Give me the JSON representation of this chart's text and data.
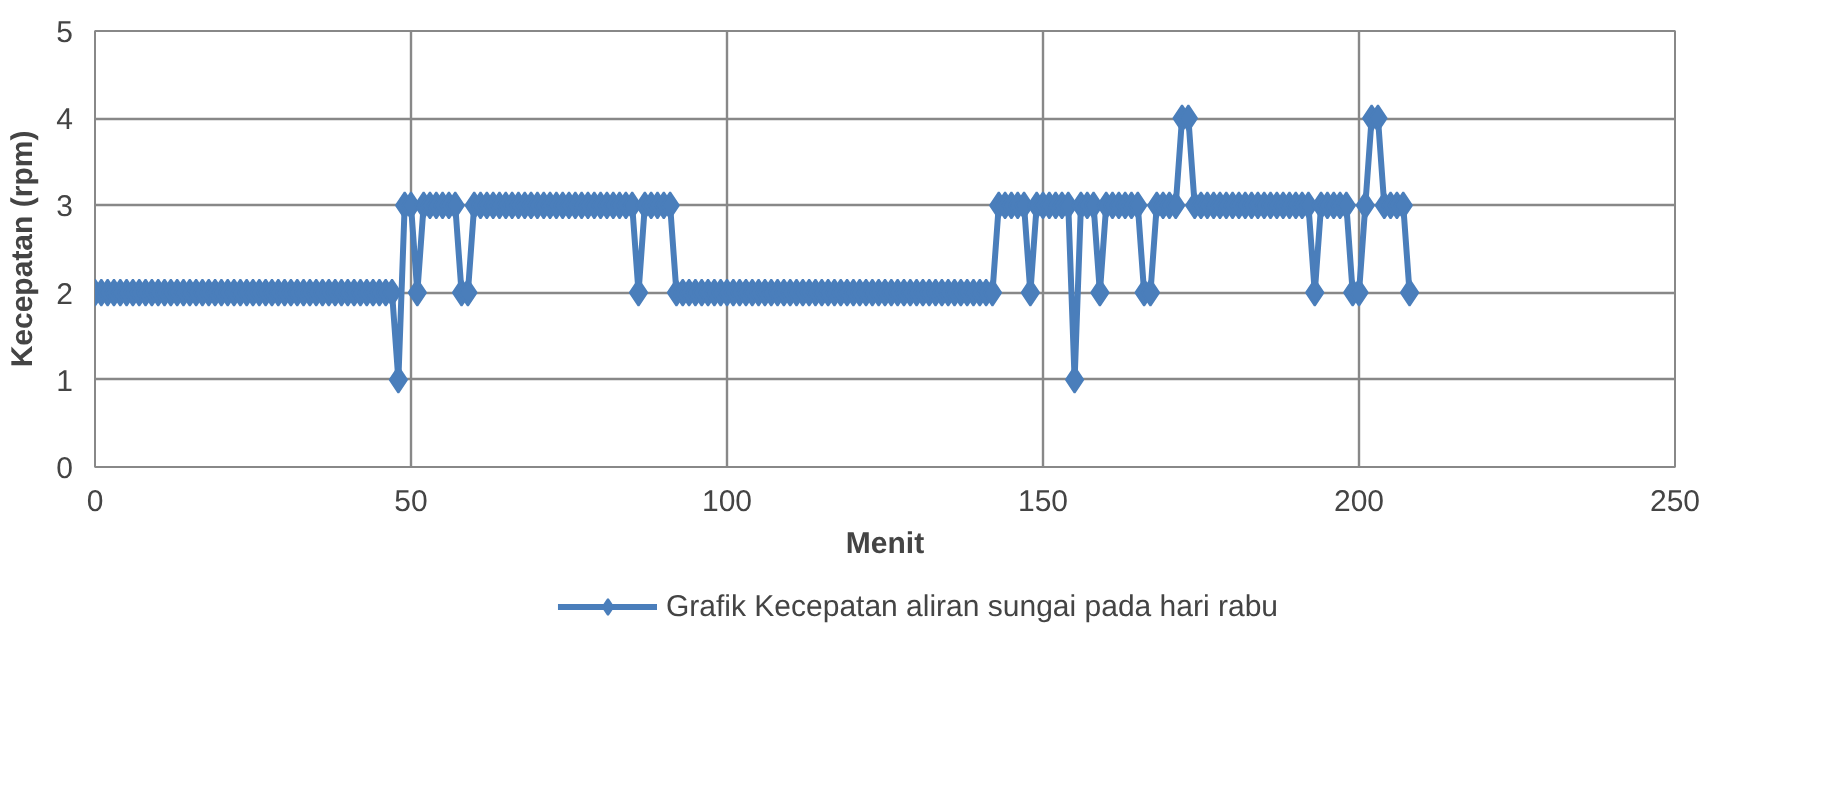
{
  "chart_data": {
    "type": "line",
    "xlabel": "Menit",
    "ylabel": "Kecepatan (rpm)",
    "x": [
      0,
      1,
      2,
      3,
      4,
      5,
      6,
      7,
      8,
      9,
      10,
      11,
      12,
      13,
      14,
      15,
      16,
      17,
      18,
      19,
      20,
      21,
      22,
      23,
      24,
      25,
      26,
      27,
      28,
      29,
      30,
      31,
      32,
      33,
      34,
      35,
      36,
      37,
      38,
      39,
      40,
      41,
      42,
      43,
      44,
      45,
      46,
      47,
      48,
      49,
      50,
      51,
      52,
      53,
      54,
      55,
      56,
      57,
      58,
      59,
      60,
      61,
      62,
      63,
      64,
      65,
      66,
      67,
      68,
      69,
      70,
      71,
      72,
      73,
      74,
      75,
      76,
      77,
      78,
      79,
      80,
      81,
      82,
      83,
      84,
      85,
      86,
      87,
      88,
      89,
      90,
      91,
      92,
      93,
      94,
      95,
      96,
      97,
      98,
      99,
      100,
      101,
      102,
      103,
      104,
      105,
      106,
      107,
      108,
      109,
      110,
      111,
      112,
      113,
      114,
      115,
      116,
      117,
      118,
      119,
      120,
      121,
      122,
      123,
      124,
      125,
      126,
      127,
      128,
      129,
      130,
      131,
      132,
      133,
      134,
      135,
      136,
      137,
      138,
      139,
      140,
      141,
      142,
      143,
      144,
      145,
      146,
      147,
      148,
      149,
      150,
      151,
      152,
      153,
      154,
      155,
      156,
      157,
      158,
      159,
      160,
      161,
      162,
      163,
      164,
      165,
      166,
      167,
      168,
      169,
      170,
      171,
      172,
      173,
      174,
      175,
      176,
      177,
      178,
      179,
      180,
      181,
      182,
      183,
      184,
      185,
      186,
      187,
      188,
      189,
      190,
      191,
      192,
      193,
      194,
      195,
      196,
      197,
      198,
      199,
      200,
      201,
      202,
      203,
      204,
      205,
      206,
      207,
      208
    ],
    "series": [
      {
        "name": "Grafik Kecepatan aliran sungai pada hari rabu",
        "color": "#4a7ebb",
        "values": [
          2,
          2,
          2,
          2,
          2,
          2,
          2,
          2,
          2,
          2,
          2,
          2,
          2,
          2,
          2,
          2,
          2,
          2,
          2,
          2,
          2,
          2,
          2,
          2,
          2,
          2,
          2,
          2,
          2,
          2,
          2,
          2,
          2,
          2,
          2,
          2,
          2,
          2,
          2,
          2,
          2,
          2,
          2,
          2,
          2,
          2,
          2,
          2,
          1,
          3,
          3,
          2,
          3,
          3,
          3,
          3,
          3,
          3,
          2,
          2,
          3,
          3,
          3,
          3,
          3,
          3,
          3,
          3,
          3,
          3,
          3,
          3,
          3,
          3,
          3,
          3,
          3,
          3,
          3,
          3,
          3,
          3,
          3,
          3,
          3,
          3,
          2,
          3,
          3,
          3,
          3,
          3,
          2,
          2,
          2,
          2,
          2,
          2,
          2,
          2,
          2,
          2,
          2,
          2,
          2,
          2,
          2,
          2,
          2,
          2,
          2,
          2,
          2,
          2,
          2,
          2,
          2,
          2,
          2,
          2,
          2,
          2,
          2,
          2,
          2,
          2,
          2,
          2,
          2,
          2,
          2,
          2,
          2,
          2,
          2,
          2,
          2,
          2,
          2,
          2,
          2,
          2,
          2,
          3,
          3,
          3,
          3,
          3,
          2,
          3,
          3,
          3,
          3,
          3,
          3,
          1,
          3,
          3,
          3,
          2,
          3,
          3,
          3,
          3,
          3,
          3,
          2,
          2,
          3,
          3,
          3,
          3,
          4,
          4,
          3,
          3,
          3,
          3,
          3,
          3,
          3,
          3,
          3,
          3,
          3,
          3,
          3,
          3,
          3,
          3,
          3,
          3,
          3,
          2,
          3,
          3,
          3,
          3,
          3,
          2,
          2,
          3,
          4,
          4,
          3,
          3,
          3,
          3,
          2
        ]
      }
    ],
    "xlim": [
      0,
      250
    ],
    "xticks": [
      0,
      50,
      100,
      150,
      200,
      250
    ],
    "ylim": [
      0,
      5
    ],
    "yticks": [
      0,
      1,
      2,
      3,
      4,
      5
    ],
    "grid": true,
    "legend": "bottom",
    "marker": "diamond",
    "line_style": "solid"
  }
}
